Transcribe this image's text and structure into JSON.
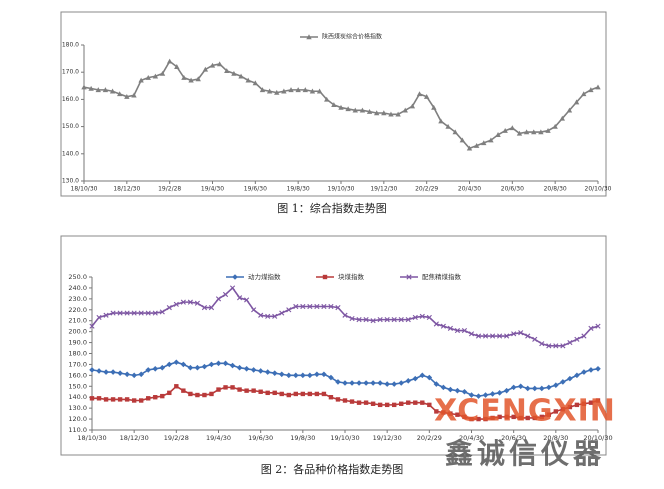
{
  "chart_data": [
    {
      "type": "line",
      "caption": "图 1：综合指数走势图",
      "categories": [
        "18/10/30",
        null,
        null,
        null,
        null,
        null,
        "18/12/30",
        null,
        null,
        null,
        null,
        null,
        "19/2/28",
        null,
        null,
        null,
        null,
        null,
        "19/4/30",
        null,
        null,
        null,
        null,
        null,
        "19/6/30",
        null,
        null,
        null,
        null,
        null,
        "19/8/30",
        null,
        null,
        null,
        null,
        null,
        "19/10/30",
        null,
        null,
        null,
        null,
        null,
        "19/12/30",
        null,
        null,
        null,
        null,
        null,
        "20/2/29",
        null,
        null,
        null,
        null,
        null,
        "20/4/30",
        null,
        null,
        null,
        null,
        null,
        "20/6/30",
        null,
        null,
        null,
        null,
        null,
        "20/8/30",
        null,
        null,
        null,
        null,
        null,
        "20/10/30"
      ],
      "series": [
        {
          "name": "陕西煤炭综合价格指数",
          "color": "#7f7f7f",
          "marker": "triangle",
          "values": [
            164.5,
            164,
            163.5,
            163.5,
            163,
            162,
            161,
            161.5,
            167,
            168,
            168.5,
            169.5,
            174,
            172,
            168,
            167,
            167.5,
            171,
            172.5,
            173,
            170.5,
            169.5,
            168.5,
            167,
            166,
            163.5,
            163,
            162.5,
            163,
            163.5,
            163.5,
            163.5,
            163,
            163,
            160,
            158,
            157,
            156.5,
            156,
            156,
            155.5,
            155,
            155,
            154.5,
            154.5,
            156,
            157.5,
            162,
            161,
            157,
            152,
            150,
            148,
            145,
            142,
            143,
            144,
            145,
            147,
            148.5,
            149.5,
            147.5,
            148,
            148,
            148,
            148.5,
            150,
            153,
            156,
            159,
            162,
            163.5,
            164.5
          ]
        }
      ],
      "ylim": [
        130,
        180
      ],
      "yticks": [
        {
          "value": 130,
          "label": "130.0"
        },
        {
          "value": 140,
          "label": "140.0"
        },
        {
          "value": 150,
          "label": "150.0"
        },
        {
          "value": 160,
          "label": "160.0"
        },
        {
          "value": 170,
          "label": "170.0"
        },
        {
          "value": 180,
          "label": "180.0"
        }
      ]
    },
    {
      "type": "line",
      "caption": "图 2：各品种价格指数走势图",
      "categories": [
        "18/10/30",
        null,
        null,
        null,
        null,
        null,
        "18/12/30",
        null,
        null,
        null,
        null,
        null,
        "19/2/28",
        null,
        null,
        null,
        null,
        null,
        "19/4/30",
        null,
        null,
        null,
        null,
        null,
        "19/6/30",
        null,
        null,
        null,
        null,
        null,
        "19/8/30",
        null,
        null,
        null,
        null,
        null,
        "19/10/30",
        null,
        null,
        null,
        null,
        null,
        "19/12/30",
        null,
        null,
        null,
        null,
        null,
        "20/2/29",
        null,
        null,
        null,
        null,
        null,
        "20/4/30",
        null,
        null,
        null,
        null,
        null,
        "20/6/30",
        null,
        null,
        null,
        null,
        null,
        "20/8/30",
        null,
        null,
        null,
        null,
        null,
        "20/10/30"
      ],
      "series": [
        {
          "name": "动力煤指数",
          "color": "#3d6fb6",
          "marker": "diamond",
          "values": [
            165,
            164,
            163,
            163,
            162,
            161,
            160,
            161,
            165,
            166,
            167,
            170,
            172,
            170,
            167,
            167,
            168,
            170,
            171,
            171,
            169,
            167,
            166,
            165,
            164,
            163,
            162,
            161,
            160,
            160,
            160,
            160,
            161,
            161,
            158,
            154,
            153,
            153,
            153,
            153,
            153,
            153,
            152,
            152,
            153,
            155,
            157,
            160,
            158,
            152,
            149,
            147,
            146,
            145,
            142,
            141,
            142,
            143,
            144,
            146,
            149,
            150,
            148,
            148,
            148,
            149,
            151,
            154,
            157,
            160,
            163,
            165,
            166
          ]
        },
        {
          "name": "块煤指数",
          "color": "#b93a3a",
          "marker": "square",
          "values": [
            139,
            139,
            138,
            138,
            138,
            138,
            137,
            137,
            139,
            140,
            141,
            144,
            150,
            146,
            143,
            142,
            142,
            143,
            147,
            149,
            149,
            147,
            146,
            146,
            145,
            144,
            144,
            143,
            142,
            143,
            143,
            143,
            143,
            143,
            140,
            138,
            137,
            136,
            135,
            135,
            134,
            133,
            133,
            133,
            134,
            135,
            135,
            135,
            133,
            127,
            126,
            125,
            124,
            122,
            120,
            120,
            120,
            121,
            122,
            122,
            122,
            121,
            121,
            121,
            122,
            124,
            127,
            129,
            131,
            133,
            134,
            135,
            137
          ]
        },
        {
          "name": "配焦精煤指数",
          "color": "#7e57a3",
          "marker": "cross",
          "values": [
            205,
            213,
            215,
            217,
            217,
            217,
            217,
            217,
            217,
            217,
            218,
            222,
            225,
            227,
            227,
            226,
            222,
            222,
            230,
            234,
            240,
            231,
            229,
            220,
            215,
            214,
            214,
            217,
            220,
            223,
            223,
            223,
            223,
            223,
            223,
            222,
            215,
            212,
            211,
            211,
            210,
            211,
            211,
            211,
            211,
            211,
            213,
            214,
            213,
            207,
            205,
            203,
            201,
            201,
            198,
            196,
            196,
            196,
            196,
            196,
            198,
            199,
            196,
            193,
            189,
            187,
            187,
            187,
            190,
            193,
            196,
            203,
            205
          ]
        }
      ],
      "ylim": [
        110,
        250
      ],
      "yticks": [
        {
          "value": 110,
          "label": "110.0"
        },
        {
          "value": 120,
          "label": "120.0"
        },
        {
          "value": 130,
          "label": "130.0"
        },
        {
          "value": 140,
          "label": "140.0"
        },
        {
          "value": 150,
          "label": "150.0"
        },
        {
          "value": 160,
          "label": "160.0"
        },
        {
          "value": 170,
          "label": "170.0"
        },
        {
          "value": 180,
          "label": "180.0"
        },
        {
          "value": 190,
          "label": "190.0"
        },
        {
          "value": 200,
          "label": "200.0"
        },
        {
          "value": 210,
          "label": "210.0"
        },
        {
          "value": 220,
          "label": "220.0"
        },
        {
          "value": 230,
          "label": "230.0"
        },
        {
          "value": 240,
          "label": "240.0"
        },
        {
          "value": 250,
          "label": "250.0"
        }
      ]
    }
  ],
  "watermark": {
    "logo": "XCENGXIN",
    "brand": "鑫诚信仪器"
  }
}
